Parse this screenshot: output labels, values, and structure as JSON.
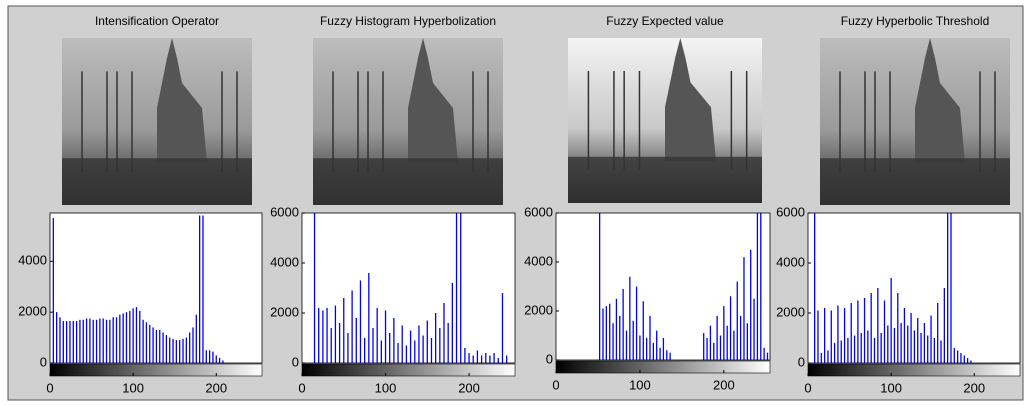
{
  "chart_data": [
    {
      "type": "bar",
      "title": "Intensification Operator",
      "color": "#0000ff",
      "x": [
        4,
        8,
        12,
        16,
        20,
        24,
        28,
        32,
        36,
        40,
        44,
        48,
        52,
        56,
        60,
        64,
        68,
        72,
        76,
        80,
        84,
        88,
        92,
        96,
        100,
        104,
        108,
        112,
        116,
        120,
        124,
        128,
        132,
        136,
        140,
        144,
        148,
        152,
        156,
        160,
        164,
        168,
        172,
        176,
        180,
        184,
        188,
        192,
        196,
        200,
        204,
        208
      ],
      "values": [
        5700,
        2000,
        1800,
        1650,
        1650,
        1650,
        1650,
        1650,
        1700,
        1700,
        1750,
        1750,
        1700,
        1700,
        1750,
        1750,
        1700,
        1700,
        1800,
        1800,
        1900,
        1950,
        2000,
        2050,
        2150,
        2200,
        2050,
        1700,
        1600,
        1500,
        1400,
        1300,
        1300,
        1200,
        1100,
        1000,
        950,
        900,
        900,
        950,
        1000,
        1200,
        1400,
        1900,
        5800,
        5800,
        500,
        500,
        450,
        300,
        200,
        100
      ],
      "xlim": [
        0,
        255
      ],
      "xticks": [
        0,
        100,
        200
      ],
      "ylim": [
        0,
        5900
      ],
      "yticks": [
        0,
        2000,
        4000
      ]
    },
    {
      "type": "bar",
      "title": "Fuzzy Histogram Hyperbolization",
      "color": "#0000ff",
      "x": [
        15,
        20,
        25,
        30,
        35,
        40,
        45,
        50,
        55,
        60,
        65,
        70,
        75,
        80,
        85,
        90,
        95,
        100,
        105,
        110,
        115,
        120,
        125,
        130,
        135,
        140,
        145,
        150,
        155,
        160,
        165,
        170,
        175,
        180,
        185,
        190,
        195,
        200,
        205,
        210,
        215,
        220,
        225,
        230,
        235,
        240,
        245
      ],
      "values": [
        6000,
        2200,
        2100,
        2200,
        1400,
        2300,
        1600,
        2600,
        1200,
        2900,
        1800,
        3300,
        1000,
        3600,
        1400,
        2200,
        900,
        2100,
        1200,
        1800,
        800,
        1500,
        700,
        1300,
        900,
        1500,
        1100,
        1700,
        1000,
        2000,
        1400,
        2400,
        1600,
        3200,
        6000,
        6000,
        600,
        400,
        300,
        500,
        300,
        400,
        300,
        400,
        200,
        2800,
        300
      ],
      "xlim": [
        0,
        255
      ],
      "xticks": [
        0,
        100,
        200
      ],
      "ylim": [
        0,
        6000
      ],
      "yticks": [
        0,
        2000,
        4000,
        6000
      ]
    },
    {
      "type": "bar",
      "title": "Fuzzy Expected value",
      "color": "#0000ff",
      "x": [
        52,
        56,
        60,
        64,
        68,
        72,
        76,
        80,
        84,
        88,
        92,
        96,
        100,
        104,
        108,
        112,
        116,
        120,
        124,
        128,
        132,
        136,
        176,
        180,
        184,
        188,
        192,
        196,
        200,
        204,
        208,
        212,
        216,
        220,
        224,
        228,
        232,
        236,
        240,
        244,
        248,
        252
      ],
      "values": [
        6000,
        2100,
        2200,
        2300,
        1500,
        2500,
        1800,
        2900,
        1200,
        3400,
        1600,
        3000,
        1000,
        2400,
        900,
        1800,
        700,
        1200,
        500,
        900,
        400,
        300,
        1100,
        900,
        1400,
        700,
        1800,
        1000,
        2200,
        1400,
        2600,
        1200,
        3200,
        1800,
        4200,
        1500,
        4500,
        2500,
        6000,
        6000,
        500,
        300
      ],
      "xlim": [
        0,
        255
      ],
      "xticks": [
        0,
        100,
        200
      ],
      "ylim": [
        0,
        6000
      ],
      "yticks": [
        0,
        2000,
        4000,
        6000
      ]
    },
    {
      "type": "bar",
      "title": "Fuzzy Hyperbolic Threshold",
      "color": "#0000ff",
      "x": [
        8,
        12,
        16,
        20,
        24,
        28,
        32,
        36,
        40,
        44,
        48,
        52,
        56,
        60,
        64,
        68,
        72,
        76,
        80,
        84,
        88,
        92,
        96,
        100,
        104,
        108,
        112,
        116,
        120,
        124,
        128,
        132,
        136,
        140,
        144,
        148,
        152,
        156,
        160,
        164,
        168,
        172,
        176,
        180,
        184,
        188,
        192,
        196
      ],
      "values": [
        6000,
        2100,
        400,
        2200,
        500,
        2100,
        800,
        2300,
        900,
        2200,
        1000,
        2400,
        1100,
        2500,
        1200,
        2600,
        1300,
        2800,
        1000,
        3000,
        1200,
        2500,
        1500,
        3400,
        1400,
        2800,
        1600,
        2200,
        1500,
        2000,
        1300,
        1800,
        1200,
        1600,
        1100,
        1900,
        1000,
        2400,
        900,
        3000,
        6000,
        6000,
        600,
        500,
        400,
        300,
        200,
        100
      ],
      "xlim": [
        0,
        255
      ],
      "xticks": [
        0,
        100,
        200
      ],
      "ylim": [
        0,
        6000
      ],
      "yticks": [
        0,
        2000,
        4000,
        6000
      ]
    }
  ]
}
